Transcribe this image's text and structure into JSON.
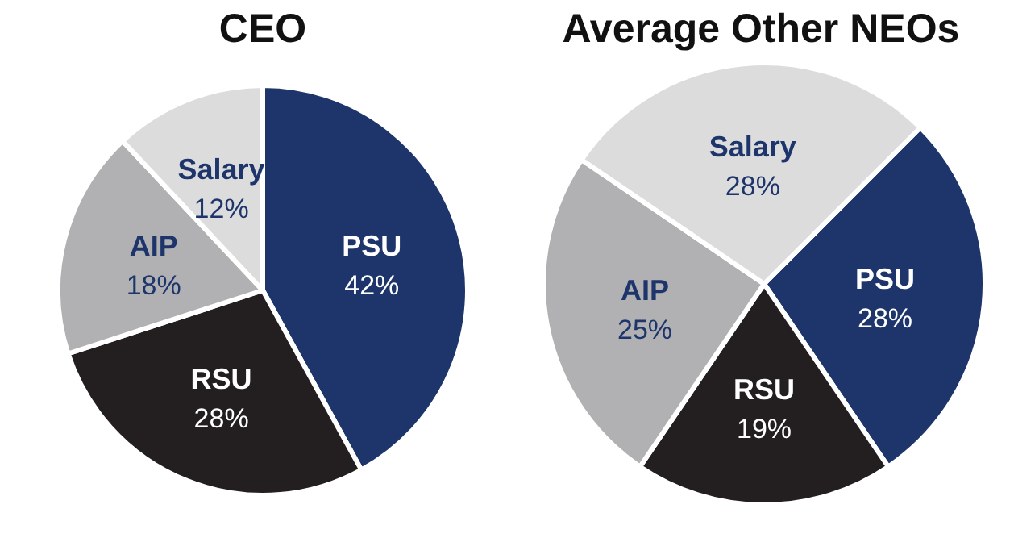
{
  "chart_data": [
    {
      "type": "pie",
      "title": "CEO",
      "categories": [
        "PSU",
        "RSU",
        "AIP",
        "Salary"
      ],
      "values": [
        42,
        28,
        18,
        12
      ],
      "value_labels": [
        "42%",
        "28%",
        "18%",
        "12%"
      ],
      "colors": [
        "#1d356a",
        "#231f20",
        "#b1b1b4",
        "#dcdcdd"
      ]
    },
    {
      "type": "pie",
      "title": "Average Other NEOs",
      "categories": [
        "PSU",
        "RSU",
        "AIP",
        "Salary"
      ],
      "values": [
        28,
        19,
        25,
        28
      ],
      "value_labels": [
        "28%",
        "19%",
        "25%",
        "28%"
      ],
      "colors": [
        "#1d356a",
        "#231f20",
        "#b1b1b4",
        "#dcdcdd"
      ]
    }
  ]
}
